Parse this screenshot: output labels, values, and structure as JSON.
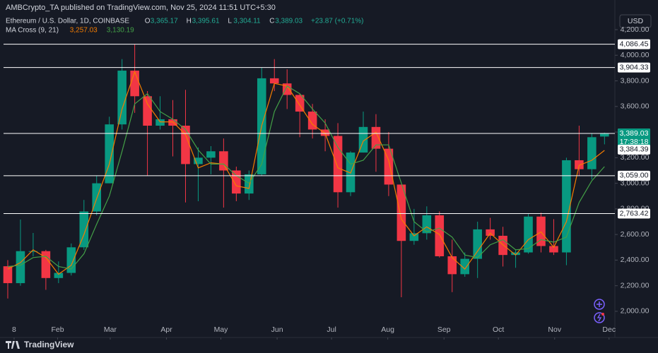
{
  "header": {
    "publisher": "AMBCrypto_TA published on TradingView.com, Nov 25, 2024 11:51 UTC+5:30",
    "symbol": "Ethereum / U.S. Dollar, 1D, COINBASE",
    "ohlc": [
      {
        "key": "O",
        "value": "3,365.17"
      },
      {
        "key": "H",
        "value": "3,395.61"
      },
      {
        "key": "L",
        "value": "3,304.11"
      },
      {
        "key": "C",
        "value": "3,389.03"
      }
    ],
    "change": "+23.87 (+0.71%)",
    "indicator": "MA Cross (9, 21)",
    "indicator_values": [
      "3,257.03",
      "3,130.19"
    ],
    "currency": "USD",
    "footer": "TradingView"
  },
  "chart_data": {
    "type": "candlestick",
    "x": [
      "2024-01-01",
      "2024-01-08",
      "2024-01-15",
      "2024-01-22",
      "2024-01-29",
      "2024-02-05",
      "2024-02-12",
      "2024-02-19",
      "2024-02-26",
      "2024-03-04",
      "2024-03-11",
      "2024-03-18",
      "2024-03-25",
      "2024-04-01",
      "2024-04-08",
      "2024-04-15",
      "2024-04-22",
      "2024-04-29",
      "2024-05-06",
      "2024-05-13",
      "2024-05-20",
      "2024-05-27",
      "2024-06-03",
      "2024-06-10",
      "2024-06-17",
      "2024-06-24",
      "2024-07-01",
      "2024-07-08",
      "2024-07-15",
      "2024-07-22",
      "2024-07-29",
      "2024-08-05",
      "2024-08-12",
      "2024-08-19",
      "2024-08-26",
      "2024-09-02",
      "2024-09-09",
      "2024-09-16",
      "2024-09-23",
      "2024-09-30",
      "2024-10-07",
      "2024-10-14",
      "2024-10-21",
      "2024-10-28",
      "2024-11-04",
      "2024-11-11",
      "2024-11-18",
      "2024-11-25"
    ],
    "open": [
      2352,
      2220,
      2470,
      2470,
      2260,
      2300,
      2500,
      2780,
      3000,
      3460,
      3880,
      3680,
      3450,
      3500,
      3450,
      3150,
      3200,
      3250,
      3100,
      2920,
      3070,
      3820,
      3780,
      3690,
      3560,
      3420,
      3370,
      2930,
      3240,
      3440,
      3270,
      2990,
      2550,
      2610,
      2750,
      2430,
      2290,
      2410,
      2640,
      2590,
      2440,
      2460,
      2740,
      2510,
      2460,
      3180,
      3110,
      3365.17
    ],
    "high": [
      2400,
      2717,
      2612,
      2480,
      2390,
      2530,
      2870,
      3060,
      3520,
      3970,
      4086,
      3720,
      3680,
      3650,
      3730,
      3280,
      3290,
      3350,
      3130,
      3100,
      3904,
      3970,
      3890,
      3700,
      3620,
      3500,
      3470,
      3250,
      3560,
      3540,
      3400,
      2990,
      2800,
      2820,
      2780,
      2560,
      2460,
      2700,
      2730,
      2660,
      2480,
      2760,
      2770,
      2720,
      3200,
      3450,
      3390,
      3395.61
    ],
    "low": [
      2100,
      2200,
      2430,
      2168,
      2220,
      2280,
      2480,
      2750,
      3000,
      3420,
      3550,
      3060,
      3420,
      3210,
      2850,
      2860,
      3070,
      2810,
      2860,
      2870,
      3060,
      3720,
      3580,
      3360,
      3350,
      3250,
      2810,
      2900,
      3240,
      3090,
      2900,
      2110,
      2520,
      2560,
      2420,
      2150,
      2270,
      2260,
      2560,
      2350,
      2340,
      2450,
      2460,
      2440,
      2360,
      3060,
      3030,
      3304.11
    ],
    "close": [
      2220,
      2470,
      2470,
      2260,
      2300,
      2500,
      2780,
      3000,
      3460,
      3880,
      3680,
      3450,
      3500,
      3450,
      3150,
      3200,
      3250,
      3100,
      2920,
      3070,
      3820,
      3780,
      3690,
      3560,
      3420,
      3370,
      2930,
      3240,
      3440,
      3270,
      2990,
      2550,
      2610,
      2750,
      2430,
      2290,
      2410,
      2640,
      2590,
      2440,
      2460,
      2740,
      2510,
      2460,
      3180,
      3110,
      3360,
      3389.03
    ],
    "up_color": "#089981",
    "down_color": "#f23645",
    "series": [
      {
        "color": "#f57c00",
        "values": [
          2330,
          2380,
          2480,
          2420,
          2290,
          2360,
          2600,
          2880,
          3150,
          3580,
          3870,
          3620,
          3480,
          3480,
          3380,
          3120,
          3160,
          3150,
          2980,
          2960,
          3450,
          3780,
          3760,
          3610,
          3460,
          3390,
          3120,
          3080,
          3330,
          3400,
          3180,
          2720,
          2590,
          2660,
          2600,
          2420,
          2330,
          2470,
          2610,
          2520,
          2440,
          2560,
          2620,
          2500,
          2700,
          3140,
          3180,
          3257.03
        ]
      },
      {
        "color": "#43a047",
        "values": [
          2350,
          2360,
          2420,
          2430,
          2350,
          2330,
          2450,
          2680,
          2900,
          3250,
          3620,
          3700,
          3560,
          3500,
          3420,
          3260,
          3150,
          3150,
          3060,
          3000,
          3150,
          3560,
          3760,
          3700,
          3580,
          3470,
          3280,
          3150,
          3180,
          3300,
          3300,
          3000,
          2700,
          2620,
          2650,
          2580,
          2440,
          2420,
          2520,
          2560,
          2480,
          2490,
          2560,
          2540,
          2580,
          2850,
          3020,
          3130.19
        ]
      }
    ],
    "xlim": [
      "2024-01-01",
      "2024-12-05"
    ],
    "xticks": [
      {
        "value": "2024-01-08",
        "label": "8"
      },
      {
        "value": "2024-02-01",
        "label": "Feb"
      },
      {
        "value": "2024-03-01",
        "label": "Mar"
      },
      {
        "value": "2024-04-01",
        "label": "Apr"
      },
      {
        "value": "2024-05-01",
        "label": "May"
      },
      {
        "value": "2024-06-01",
        "label": "Jun"
      },
      {
        "value": "2024-07-01",
        "label": "Jul"
      },
      {
        "value": "2024-08-01",
        "label": "Aug"
      },
      {
        "value": "2024-09-01",
        "label": "Sep"
      },
      {
        "value": "2024-10-01",
        "label": "Oct"
      },
      {
        "value": "2024-11-01",
        "label": "Nov"
      },
      {
        "value": "2024-12-01",
        "label": "Dec"
      }
    ],
    "ylim": [
      1895,
      4222
    ],
    "yticks": [
      {
        "value": 2000,
        "label": "2,000.00"
      },
      {
        "value": 2200,
        "label": "2,200.00"
      },
      {
        "value": 2400,
        "label": "2,400.00"
      },
      {
        "value": 2600,
        "label": "2,600.00"
      },
      {
        "value": 2800,
        "label": "2,800.00"
      },
      {
        "value": 3000,
        "label": "3,000.00"
      },
      {
        "value": 3200,
        "label": "3,200.00"
      },
      {
        "value": 3400,
        "label": "3,400.00"
      },
      {
        "value": 3600,
        "label": "3,600.00"
      },
      {
        "value": 3800,
        "label": "3,800.00"
      },
      {
        "value": 4000,
        "label": "4,000.00"
      },
      {
        "value": 4200,
        "label": "4,200.00"
      }
    ],
    "levels": [
      {
        "value": 4086.45,
        "label": "4,086.45"
      },
      {
        "value": 3904.33,
        "label": "3,904.33"
      },
      {
        "value": 3389.03,
        "label": "3,389.03"
      },
      {
        "value": 3059.0,
        "label": "3,059.00"
      },
      {
        "value": 2763.42,
        "label": "2,763.42"
      }
    ],
    "last_price": {
      "value": 3389.03,
      "label": "3,389.03",
      "countdown": "17:38:18",
      "color": "#089981"
    },
    "ma_tag": {
      "value": 3384.39,
      "label": "3,384.39"
    },
    "grid": false
  }
}
